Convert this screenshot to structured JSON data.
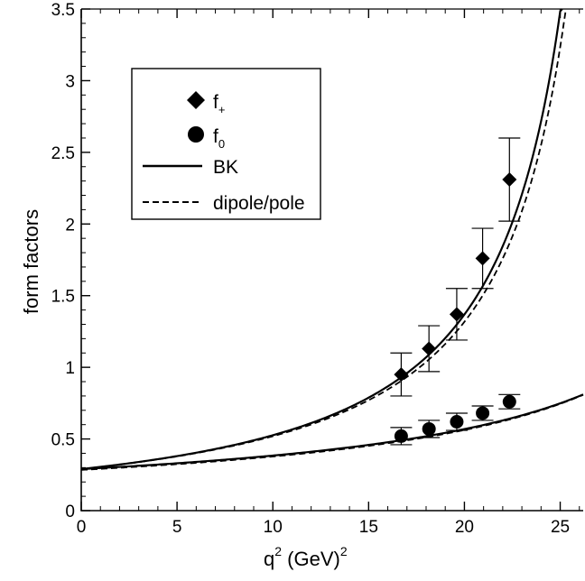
{
  "chart_data": {
    "type": "scatter",
    "xlabel": "q² (GeV)²",
    "xlabel_parts": {
      "base": "q",
      "exp1": "2",
      "unit": " (GeV)",
      "exp2": "2"
    },
    "ylabel": "form factors",
    "xlim": [
      0,
      26.2
    ],
    "ylim": [
      0,
      3.5
    ],
    "x_ticks": [
      0,
      5,
      10,
      15,
      20,
      25
    ],
    "y_ticks": [
      0,
      0.5,
      1,
      1.5,
      2,
      2.5,
      3,
      3.5
    ],
    "y_tick_labels": [
      "0",
      "0.5",
      "1",
      "1.5",
      "2",
      "2.5",
      "3",
      "3.5"
    ],
    "legend_position": "top-left",
    "grid": false,
    "series": [
      {
        "name": "f+",
        "label_base": "f",
        "label_sub": "+",
        "marker": "diamond",
        "x": [
          16.7,
          18.15,
          19.6,
          20.95,
          22.35
        ],
        "y": [
          0.95,
          1.13,
          1.37,
          1.76,
          2.31
        ],
        "err": [
          0.15,
          0.16,
          0.18,
          0.21,
          0.29
        ]
      },
      {
        "name": "f0",
        "label_base": "f",
        "label_sub": "0",
        "marker": "circle",
        "x": [
          16.7,
          18.15,
          19.6,
          20.95,
          22.35
        ],
        "y": [
          0.52,
          0.57,
          0.62,
          0.68,
          0.76
        ],
        "err": [
          0.06,
          0.06,
          0.06,
          0.05,
          0.05
        ]
      }
    ],
    "fit_curves": [
      {
        "name": "BK",
        "style": "solid"
      },
      {
        "name": "dipole/pole",
        "style": "dashed"
      }
    ]
  }
}
